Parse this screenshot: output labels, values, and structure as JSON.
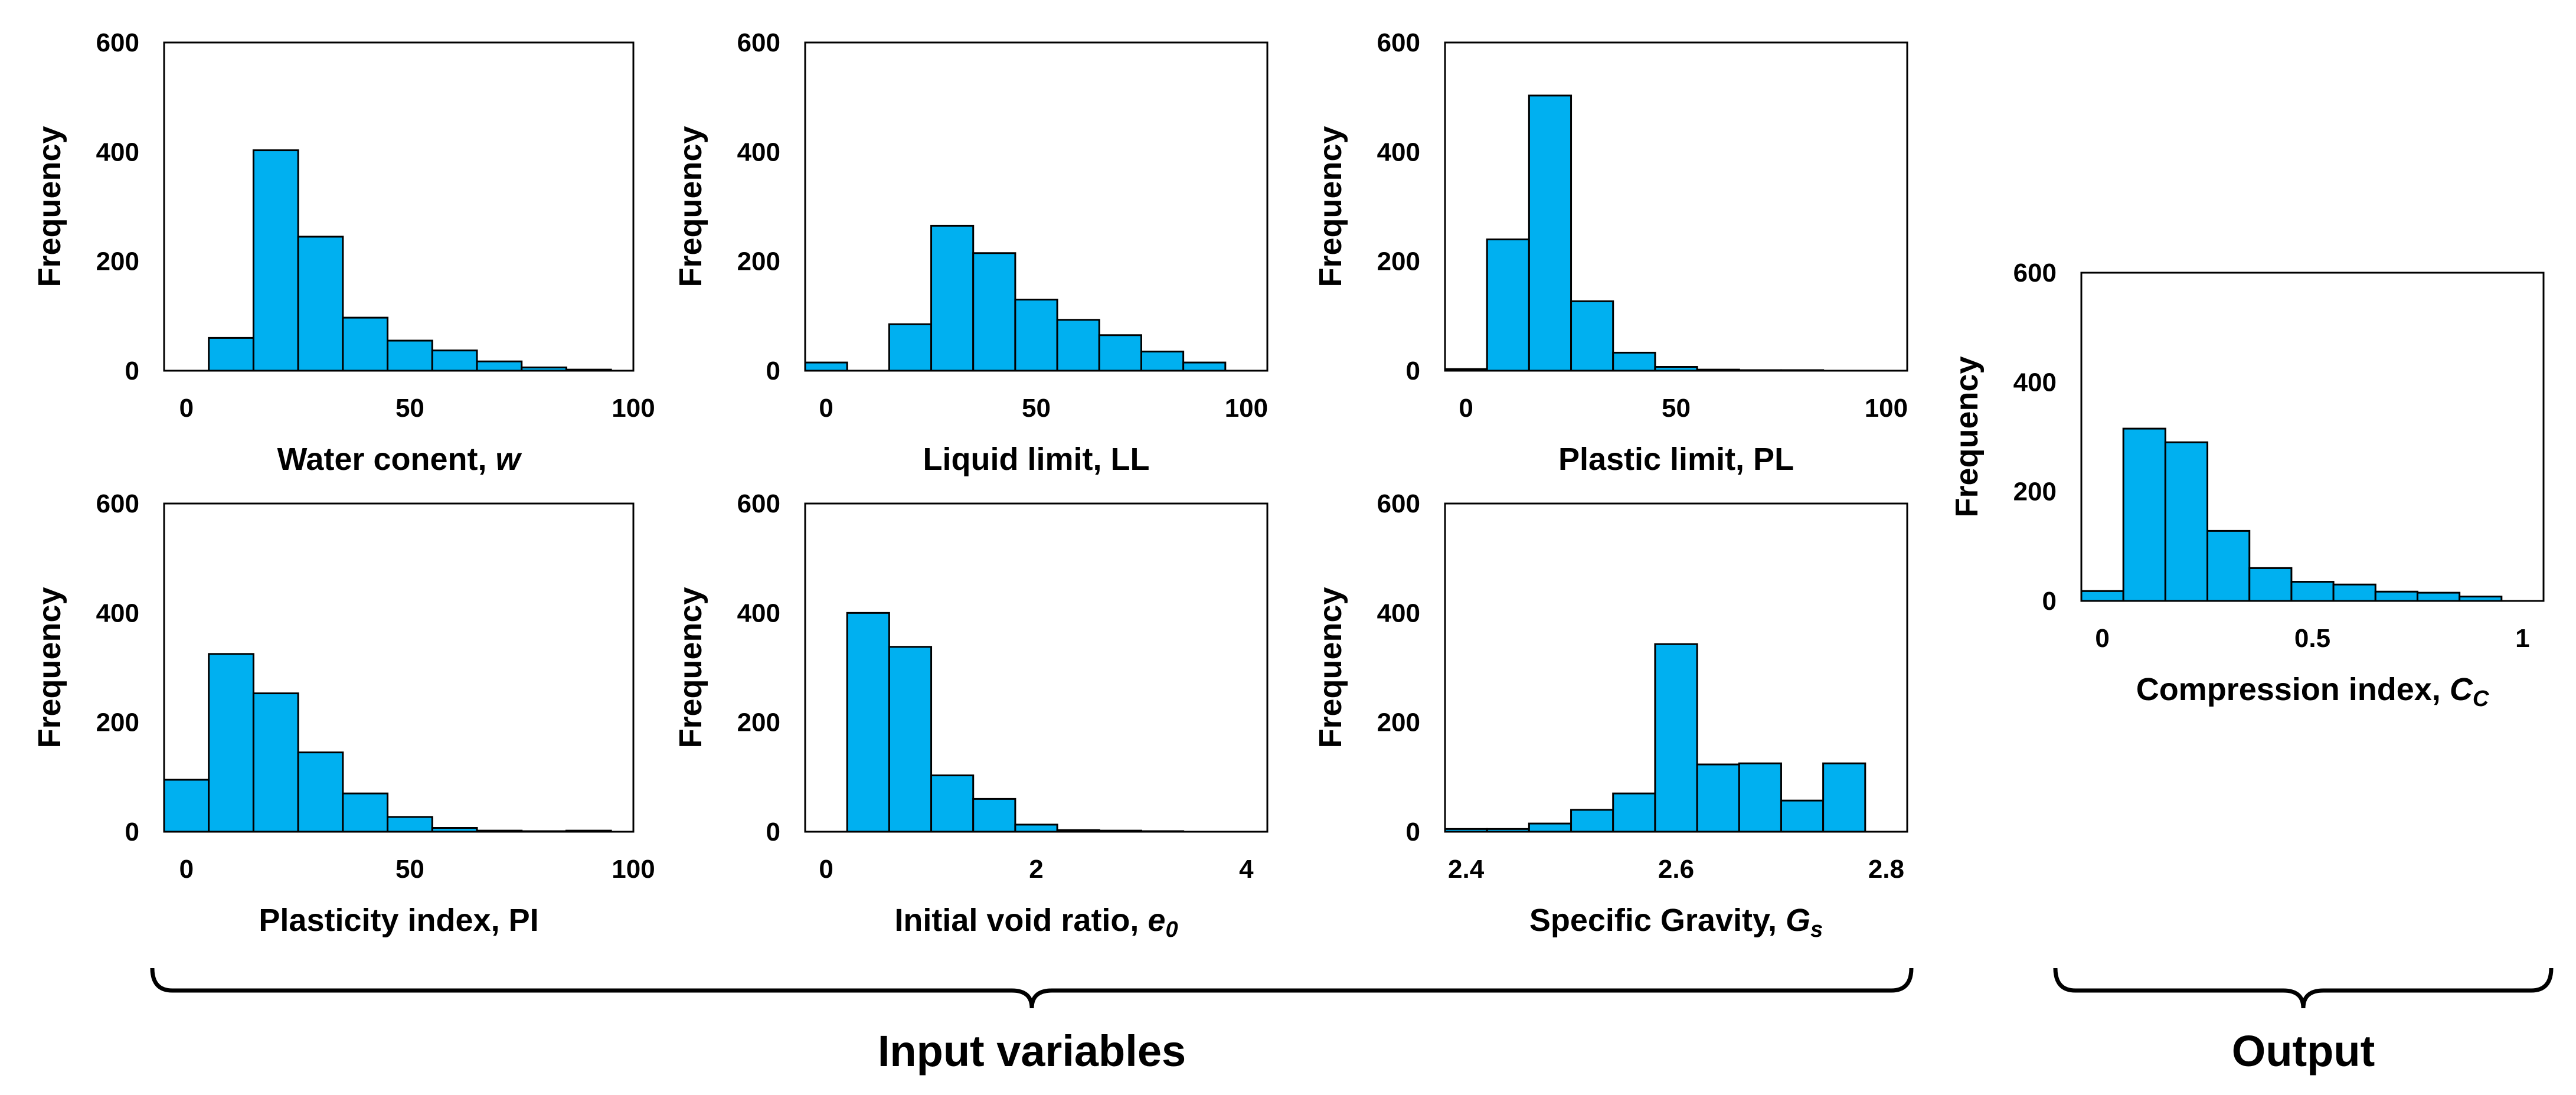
{
  "colors": {
    "bar_fill": "#00b0f0",
    "bar_stroke": "#000000",
    "axis": "#000000"
  },
  "groups": [
    {
      "label": "Input variables"
    },
    {
      "label": "Output"
    }
  ],
  "chart_data": [
    {
      "type": "bar",
      "id": "water-content",
      "title": "",
      "xlabel_parts": [
        {
          "text": "Water conent, "
        },
        {
          "text": "w",
          "style": "italic"
        }
      ],
      "ylabel": "Frequency",
      "bin_edges": [
        5,
        15,
        25,
        35,
        45,
        55,
        65,
        75,
        85,
        95
      ],
      "values": [
        60,
        403,
        245,
        97,
        55,
        37,
        17,
        6,
        2
      ],
      "xlim": [
        -5,
        100
      ],
      "ylim": [
        0,
        600
      ],
      "xticks": [
        0,
        50,
        100
      ],
      "xtick_labels": [
        "0",
        "50",
        "100"
      ],
      "yticks": [
        0,
        200,
        400,
        600
      ],
      "ytick_labels": [
        "0",
        "200",
        "400",
        "600"
      ]
    },
    {
      "type": "bar",
      "id": "liquid-limit",
      "title": "",
      "xlabel_parts": [
        {
          "text": "Liquid limit, LL"
        }
      ],
      "ylabel": "Frequency",
      "bin_edges": [
        -5,
        5,
        15,
        25,
        35,
        45,
        55,
        65,
        75,
        85,
        95
      ],
      "values": [
        15,
        0,
        85,
        265,
        215,
        130,
        93,
        65,
        35,
        15
      ],
      "xlim": [
        -5,
        105
      ],
      "ylim": [
        0,
        600
      ],
      "xticks": [
        0,
        50,
        100
      ],
      "xtick_labels": [
        "0",
        "50",
        "100"
      ],
      "yticks": [
        0,
        200,
        400,
        600
      ],
      "ytick_labels": [
        "0",
        "200",
        "400",
        "600"
      ]
    },
    {
      "type": "bar",
      "id": "plastic-limit",
      "title": "",
      "xlabel_parts": [
        {
          "text": "Plastic limit, PL"
        }
      ],
      "ylabel": "Frequency",
      "bin_edges": [
        -5,
        5,
        15,
        25,
        35,
        45,
        55,
        65,
        75,
        85
      ],
      "values": [
        3,
        240,
        503,
        127,
        33,
        7,
        2,
        1,
        1
      ],
      "xlim": [
        -5,
        105
      ],
      "ylim": [
        0,
        600
      ],
      "xticks": [
        0,
        50,
        100
      ],
      "xtick_labels": [
        "0",
        "50",
        "100"
      ],
      "yticks": [
        0,
        200,
        400,
        600
      ],
      "ytick_labels": [
        "0",
        "200",
        "400",
        "600"
      ]
    },
    {
      "type": "bar",
      "id": "plasticity-index",
      "title": "",
      "xlabel_parts": [
        {
          "text": "Plasticity index, PI"
        }
      ],
      "ylabel": "Frequency",
      "bin_edges": [
        -5,
        5,
        15,
        25,
        35,
        45,
        55,
        65,
        75,
        85,
        95
      ],
      "values": [
        95,
        325,
        253,
        145,
        70,
        27,
        7,
        2,
        1,
        2
      ],
      "xlim": [
        -5,
        100
      ],
      "ylim": [
        0,
        600
      ],
      "xticks": [
        0,
        50,
        100
      ],
      "xtick_labels": [
        "0",
        "50",
        "100"
      ],
      "yticks": [
        0,
        200,
        400,
        600
      ],
      "ytick_labels": [
        "0",
        "200",
        "400",
        "600"
      ]
    },
    {
      "type": "bar",
      "id": "initial-void-ratio",
      "title": "",
      "xlabel_parts": [
        {
          "text": "Initial void ratio, "
        },
        {
          "text": "e",
          "style": "italic"
        },
        {
          "text": "0",
          "style": "italic-sub"
        }
      ],
      "ylabel": "Frequency",
      "bin_edges": [
        0.2,
        0.6,
        1.0,
        1.4,
        1.8,
        2.2,
        2.6,
        3.0,
        3.4
      ],
      "values": [
        400,
        338,
        103,
        60,
        13,
        3,
        2,
        1
      ],
      "xlim": [
        -0.2,
        4.2
      ],
      "ylim": [
        0,
        600
      ],
      "xticks": [
        0,
        2,
        4
      ],
      "xtick_labels": [
        "0",
        "2",
        "4"
      ],
      "yticks": [
        0,
        200,
        400,
        600
      ],
      "ytick_labels": [
        "0",
        "200",
        "400",
        "600"
      ]
    },
    {
      "type": "bar",
      "id": "specific-gravity",
      "title": "",
      "xlabel_parts": [
        {
          "text": "Specific Gravity, "
        },
        {
          "text": "G",
          "style": "italic"
        },
        {
          "text": "s",
          "style": "italic-sub"
        }
      ],
      "ylabel": "Frequency",
      "bin_edges": [
        2.38,
        2.42,
        2.46,
        2.5,
        2.54,
        2.58,
        2.62,
        2.66,
        2.7,
        2.74,
        2.78
      ],
      "values": [
        5,
        5,
        15,
        40,
        70,
        343,
        123,
        125,
        57,
        125
      ],
      "xlim": [
        2.38,
        2.82
      ],
      "ylim": [
        0,
        600
      ],
      "xticks": [
        2.4,
        2.6,
        2.8
      ],
      "xtick_labels": [
        "2.4",
        "2.6",
        "2.8"
      ],
      "yticks": [
        0,
        200,
        400,
        600
      ],
      "ytick_labels": [
        "0",
        "200",
        "400",
        "600"
      ]
    },
    {
      "type": "bar",
      "id": "compression-index",
      "title": "",
      "xlabel_parts": [
        {
          "text": "Compression index, "
        },
        {
          "text": "C",
          "style": "italic"
        },
        {
          "text": "C",
          "style": "italic-sub"
        }
      ],
      "ylabel": "Frequency",
      "bin_edges": [
        -0.05,
        0.05,
        0.15,
        0.25,
        0.35,
        0.45,
        0.55,
        0.65,
        0.75,
        0.85,
        0.95
      ],
      "values": [
        18,
        315,
        290,
        128,
        60,
        35,
        30,
        17,
        15,
        8
      ],
      "xlim": [
        -0.05,
        1.05
      ],
      "ylim": [
        0,
        600
      ],
      "xticks": [
        0,
        0.5,
        1
      ],
      "xtick_labels": [
        "0",
        "0.5",
        "1"
      ],
      "yticks": [
        0,
        200,
        400,
        600
      ],
      "ytick_labels": [
        "0",
        "200",
        "400",
        "600"
      ]
    }
  ]
}
